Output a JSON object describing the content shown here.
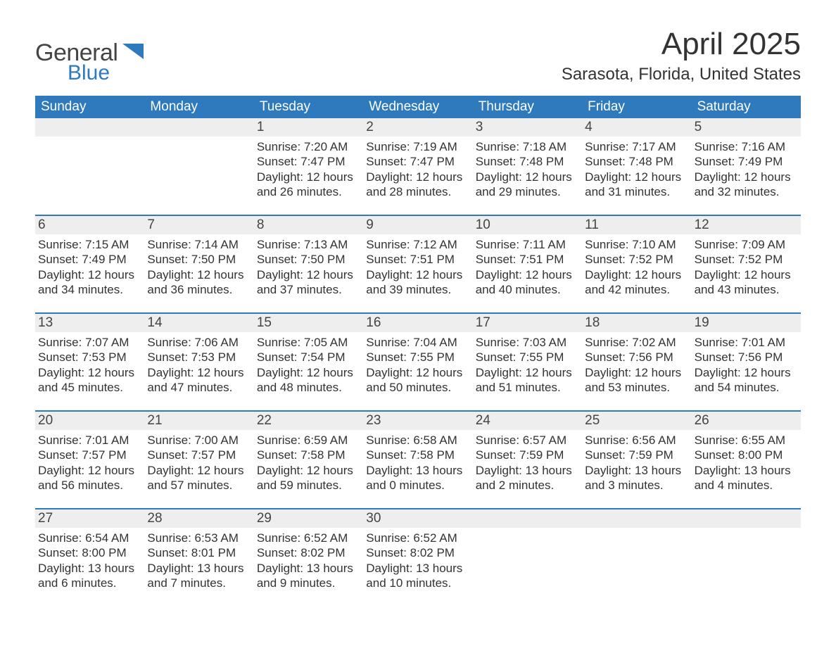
{
  "brand": {
    "word1": "General",
    "word2": "Blue",
    "color_general": "#444444",
    "color_blue": "#2f79bd",
    "glyph_fill": "#2f79bd"
  },
  "title": {
    "month_year": "April 2025",
    "location": "Sarasota, Florida, United States"
  },
  "styling": {
    "header_bg": "#2f79bd",
    "header_text": "#ffffff",
    "daynum_bg": "#eeeeee",
    "row_divider": "#2f79bd",
    "body_text": "#333333",
    "page_bg": "#ffffff",
    "dow_fontsize": 19,
    "daynum_fontsize": 19,
    "content_fontsize": 17,
    "title_fontsize": 44,
    "subtitle_fontsize": 24
  },
  "days_of_week": [
    "Sunday",
    "Monday",
    "Tuesday",
    "Wednesday",
    "Thursday",
    "Friday",
    "Saturday"
  ],
  "weeks": [
    [
      {
        "num": "",
        "content": ""
      },
      {
        "num": "",
        "content": ""
      },
      {
        "num": "1",
        "content": "Sunrise: 7:20 AM\nSunset: 7:47 PM\nDaylight: 12 hours and 26 minutes."
      },
      {
        "num": "2",
        "content": "Sunrise: 7:19 AM\nSunset: 7:47 PM\nDaylight: 12 hours and 28 minutes."
      },
      {
        "num": "3",
        "content": "Sunrise: 7:18 AM\nSunset: 7:48 PM\nDaylight: 12 hours and 29 minutes."
      },
      {
        "num": "4",
        "content": "Sunrise: 7:17 AM\nSunset: 7:48 PM\nDaylight: 12 hours and 31 minutes."
      },
      {
        "num": "5",
        "content": "Sunrise: 7:16 AM\nSunset: 7:49 PM\nDaylight: 12 hours and 32 minutes."
      }
    ],
    [
      {
        "num": "6",
        "content": "Sunrise: 7:15 AM\nSunset: 7:49 PM\nDaylight: 12 hours and 34 minutes."
      },
      {
        "num": "7",
        "content": "Sunrise: 7:14 AM\nSunset: 7:50 PM\nDaylight: 12 hours and 36 minutes."
      },
      {
        "num": "8",
        "content": "Sunrise: 7:13 AM\nSunset: 7:50 PM\nDaylight: 12 hours and 37 minutes."
      },
      {
        "num": "9",
        "content": "Sunrise: 7:12 AM\nSunset: 7:51 PM\nDaylight: 12 hours and 39 minutes."
      },
      {
        "num": "10",
        "content": "Sunrise: 7:11 AM\nSunset: 7:51 PM\nDaylight: 12 hours and 40 minutes."
      },
      {
        "num": "11",
        "content": "Sunrise: 7:10 AM\nSunset: 7:52 PM\nDaylight: 12 hours and 42 minutes."
      },
      {
        "num": "12",
        "content": "Sunrise: 7:09 AM\nSunset: 7:52 PM\nDaylight: 12 hours and 43 minutes."
      }
    ],
    [
      {
        "num": "13",
        "content": "Sunrise: 7:07 AM\nSunset: 7:53 PM\nDaylight: 12 hours and 45 minutes."
      },
      {
        "num": "14",
        "content": "Sunrise: 7:06 AM\nSunset: 7:53 PM\nDaylight: 12 hours and 47 minutes."
      },
      {
        "num": "15",
        "content": "Sunrise: 7:05 AM\nSunset: 7:54 PM\nDaylight: 12 hours and 48 minutes."
      },
      {
        "num": "16",
        "content": "Sunrise: 7:04 AM\nSunset: 7:55 PM\nDaylight: 12 hours and 50 minutes."
      },
      {
        "num": "17",
        "content": "Sunrise: 7:03 AM\nSunset: 7:55 PM\nDaylight: 12 hours and 51 minutes."
      },
      {
        "num": "18",
        "content": "Sunrise: 7:02 AM\nSunset: 7:56 PM\nDaylight: 12 hours and 53 minutes."
      },
      {
        "num": "19",
        "content": "Sunrise: 7:01 AM\nSunset: 7:56 PM\nDaylight: 12 hours and 54 minutes."
      }
    ],
    [
      {
        "num": "20",
        "content": "Sunrise: 7:01 AM\nSunset: 7:57 PM\nDaylight: 12 hours and 56 minutes."
      },
      {
        "num": "21",
        "content": "Sunrise: 7:00 AM\nSunset: 7:57 PM\nDaylight: 12 hours and 57 minutes."
      },
      {
        "num": "22",
        "content": "Sunrise: 6:59 AM\nSunset: 7:58 PM\nDaylight: 12 hours and 59 minutes."
      },
      {
        "num": "23",
        "content": "Sunrise: 6:58 AM\nSunset: 7:58 PM\nDaylight: 13 hours and 0 minutes."
      },
      {
        "num": "24",
        "content": "Sunrise: 6:57 AM\nSunset: 7:59 PM\nDaylight: 13 hours and 2 minutes."
      },
      {
        "num": "25",
        "content": "Sunrise: 6:56 AM\nSunset: 7:59 PM\nDaylight: 13 hours and 3 minutes."
      },
      {
        "num": "26",
        "content": "Sunrise: 6:55 AM\nSunset: 8:00 PM\nDaylight: 13 hours and 4 minutes."
      }
    ],
    [
      {
        "num": "27",
        "content": "Sunrise: 6:54 AM\nSunset: 8:00 PM\nDaylight: 13 hours and 6 minutes."
      },
      {
        "num": "28",
        "content": "Sunrise: 6:53 AM\nSunset: 8:01 PM\nDaylight: 13 hours and 7 minutes."
      },
      {
        "num": "29",
        "content": "Sunrise: 6:52 AM\nSunset: 8:02 PM\nDaylight: 13 hours and 9 minutes."
      },
      {
        "num": "30",
        "content": "Sunrise: 6:52 AM\nSunset: 8:02 PM\nDaylight: 13 hours and 10 minutes."
      },
      {
        "num": "",
        "content": ""
      },
      {
        "num": "",
        "content": ""
      },
      {
        "num": "",
        "content": ""
      }
    ]
  ]
}
